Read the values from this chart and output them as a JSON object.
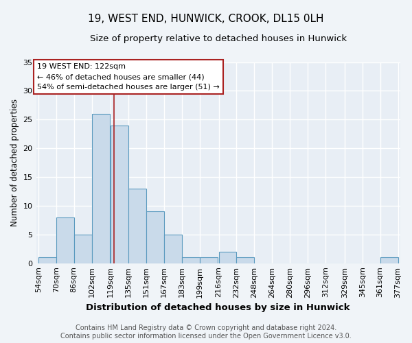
{
  "title": "19, WEST END, HUNWICK, CROOK, DL15 0LH",
  "subtitle": "Size of property relative to detached houses in Hunwick",
  "xlabel": "Distribution of detached houses by size in Hunwick",
  "ylabel": "Number of detached properties",
  "bin_edges": [
    54,
    70,
    86,
    102,
    119,
    135,
    151,
    167,
    183,
    199,
    216,
    232,
    248,
    264,
    280,
    296,
    312,
    329,
    345,
    361,
    377
  ],
  "bin_labels": [
    "54sqm",
    "70sqm",
    "86sqm",
    "102sqm",
    "119sqm",
    "135sqm",
    "151sqm",
    "167sqm",
    "183sqm",
    "199sqm",
    "216sqm",
    "232sqm",
    "248sqm",
    "264sqm",
    "280sqm",
    "296sqm",
    "312sqm",
    "329sqm",
    "345sqm",
    "361sqm",
    "377sqm"
  ],
  "bar_counts": [
    1,
    8,
    5,
    26,
    24,
    13,
    9,
    5,
    1,
    1,
    2,
    1,
    0,
    0,
    0,
    0,
    0,
    0,
    0,
    1
  ],
  "bar_color": "#c9daea",
  "bar_edge_color": "#5b9abf",
  "property_size": 122,
  "red_line_color": "#aa2222",
  "annotation_line1": "19 WEST END: 122sqm",
  "annotation_line2": "← 46% of detached houses are smaller (44)",
  "annotation_line3": "54% of semi-detached houses are larger (51) →",
  "annotation_box_facecolor": "white",
  "annotation_box_edgecolor": "#aa2222",
  "ylim": [
    0,
    35
  ],
  "yticks": [
    0,
    5,
    10,
    15,
    20,
    25,
    30,
    35
  ],
  "title_fontsize": 11,
  "subtitle_fontsize": 9.5,
  "xlabel_fontsize": 9.5,
  "ylabel_fontsize": 8.5,
  "tick_fontsize": 8,
  "annotation_fontsize": 8,
  "footer_fontsize": 7,
  "footer": "Contains HM Land Registry data © Crown copyright and database right 2024.\nContains public sector information licensed under the Open Government Licence v3.0.",
  "plot_bg_color": "#e8eef5",
  "fig_bg_color": "#f0f4f8",
  "grid_color": "white"
}
